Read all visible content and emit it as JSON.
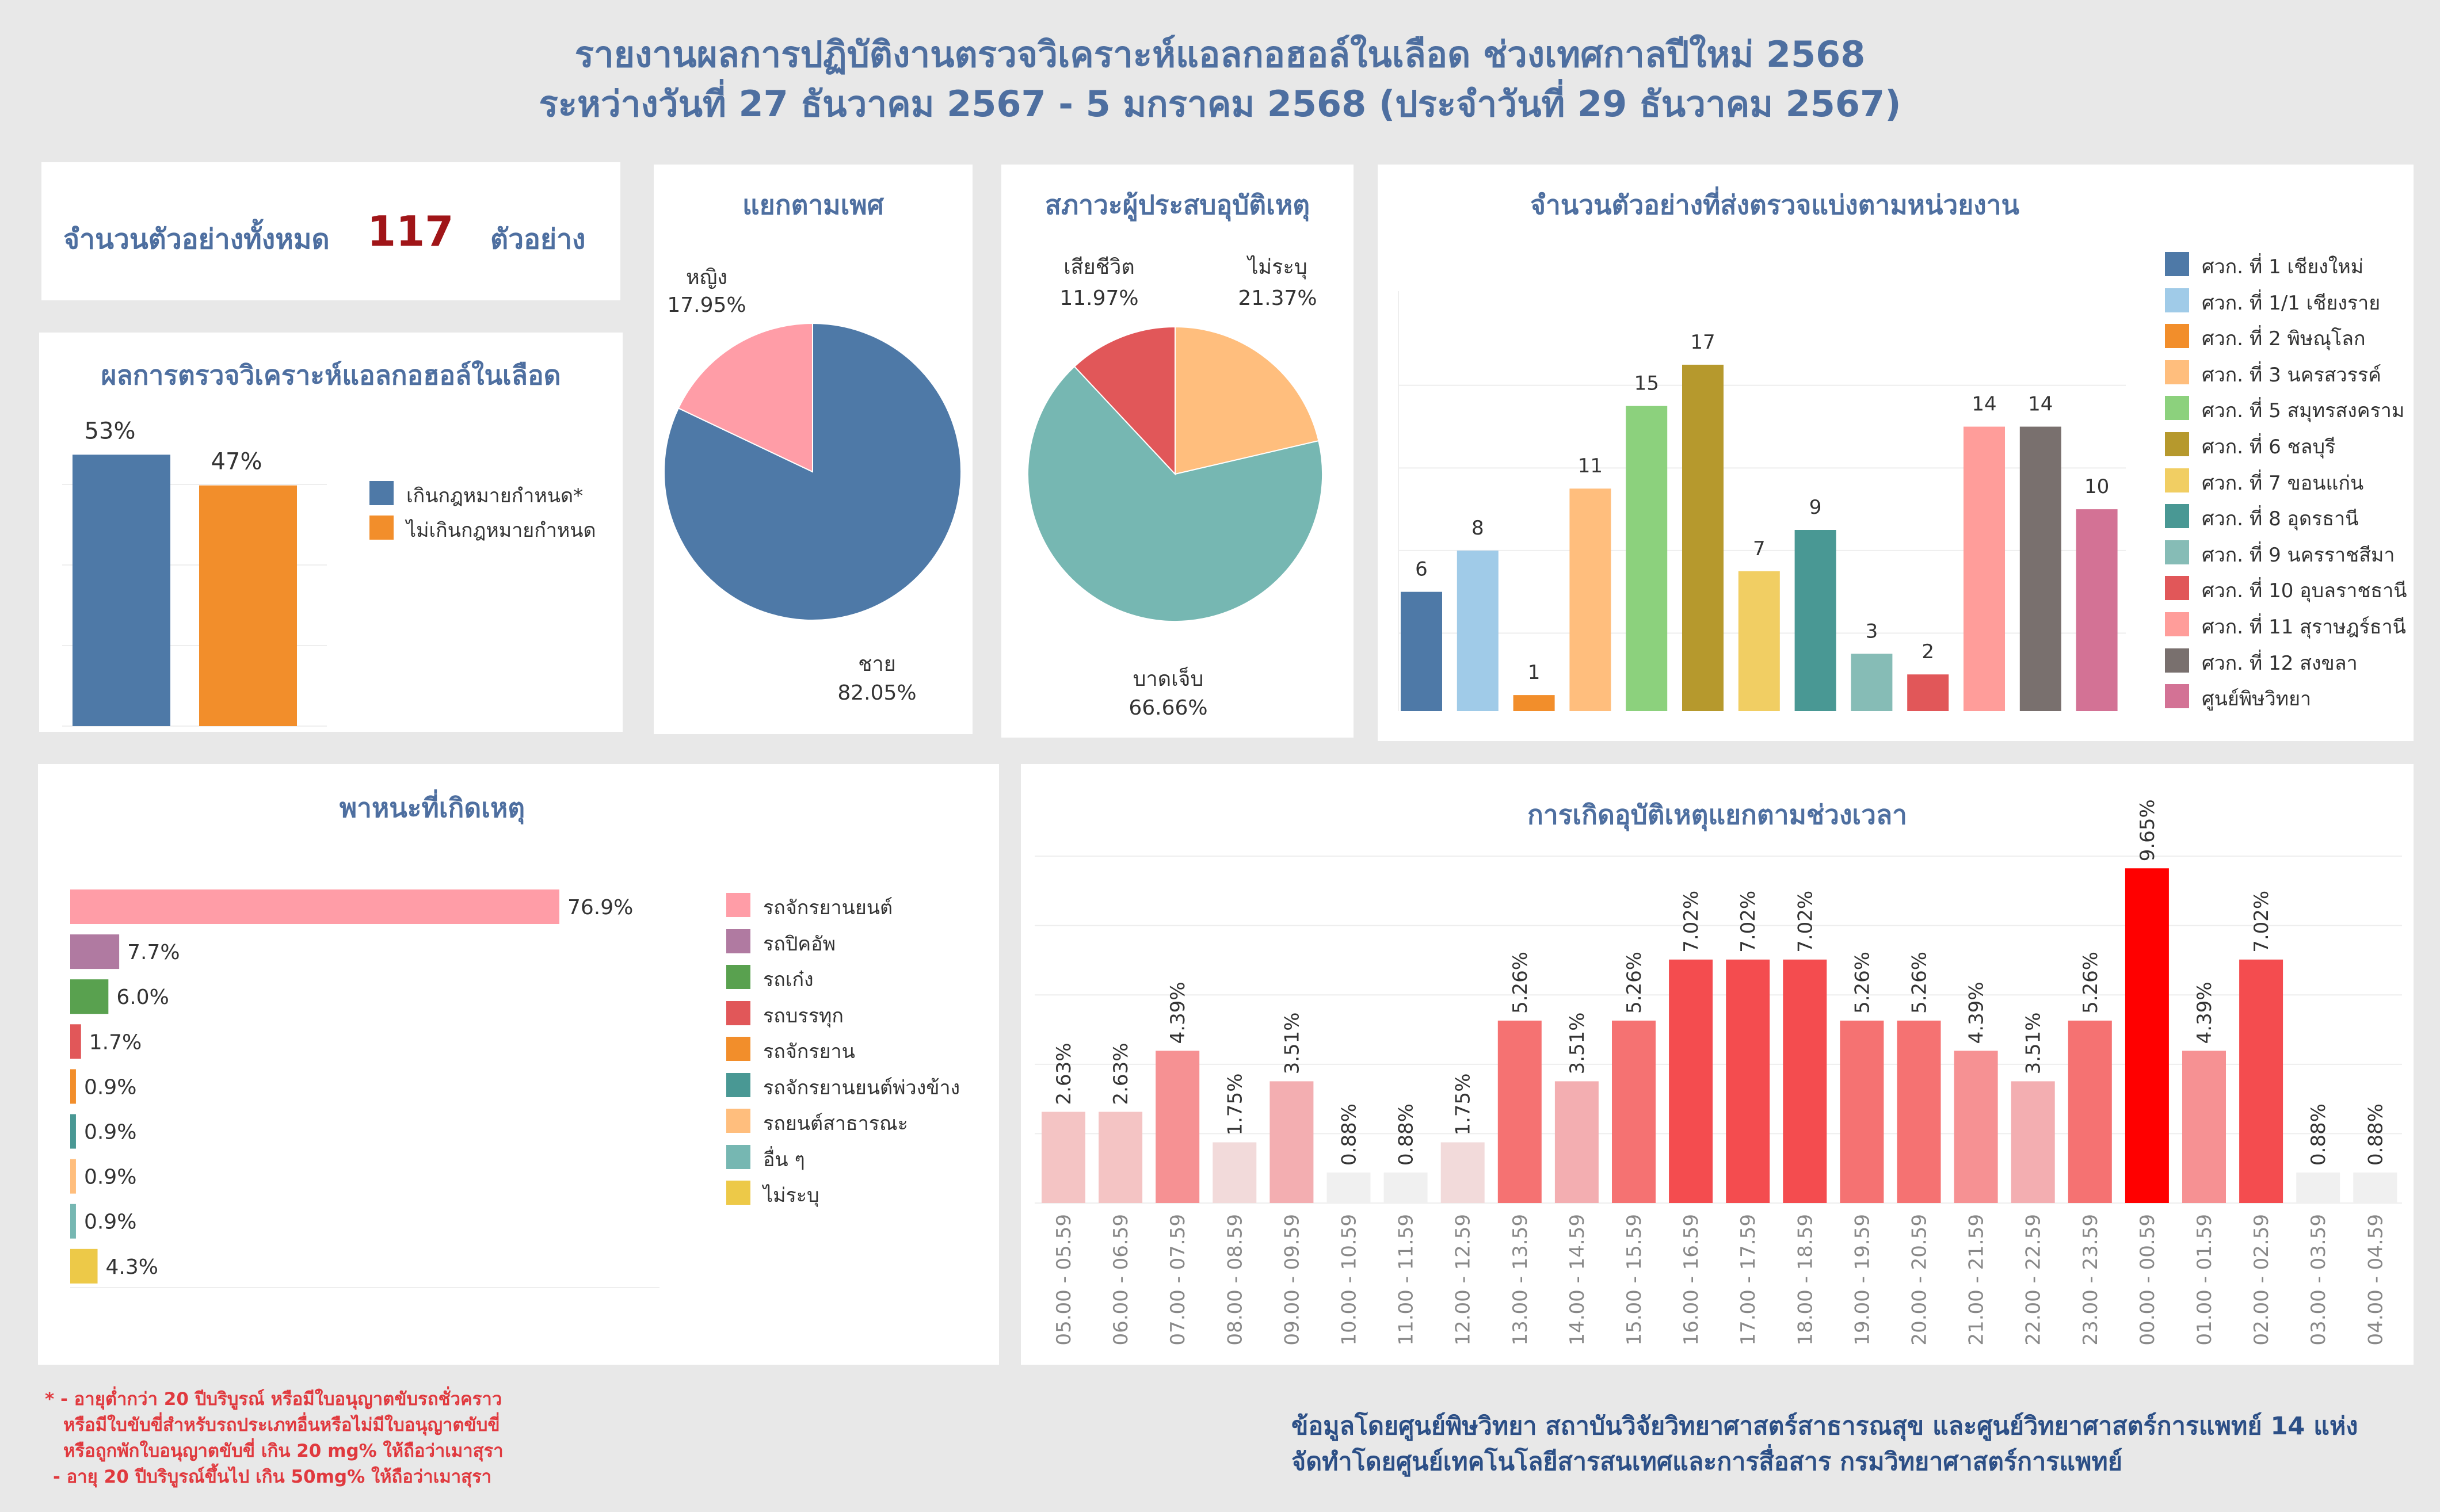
{
  "header": {
    "title_line1": "รายงานผลการปฏิบัติงานตรวจวิเคราะห์แอลกอฮอล์ในเลือด ช่วงเทศกาลปีใหม่ 2568",
    "title_line2": "ระหว่างวันที่ 27 ธันวาคม 2567 - 5 มกราคม 2568 (ประจำวันที่ 29 ธันวาคม 2567)"
  },
  "total": {
    "label": "จำนวนตัวอย่างทั้งหมด",
    "value": "117",
    "unit": "ตัวอย่าง",
    "value_color": "#a01518"
  },
  "colors": {
    "title_blue": "#4e6fa0",
    "panel_bg": "#ffffff",
    "page_bg": "#e8e8e8"
  },
  "chart_data": [
    {
      "id": "alcohol_result",
      "type": "bar",
      "title": "ผลการตรวจวิเคราะห์แอลกอฮอล์ในเลือด",
      "categories": [
        "เกินกฎหมายกำหนด*",
        "ไม่เกินกฎหมายกำหนด"
      ],
      "values": [
        53,
        47
      ],
      "labels": [
        "53%",
        "47%"
      ],
      "colors": [
        "#4e79a7",
        "#f28e2b"
      ],
      "ylim": [
        0,
        60
      ],
      "legend": "right"
    },
    {
      "id": "gender",
      "type": "pie",
      "title": "แยกตามเพศ",
      "categories": [
        "ชาย",
        "หญิง"
      ],
      "values": [
        82.05,
        17.95
      ],
      "labels": [
        "82.05%",
        "17.95%"
      ],
      "colors": [
        "#4e79a7",
        "#ff9da7"
      ]
    },
    {
      "id": "victim_status",
      "type": "pie",
      "title": "สภาวะผู้ประสบอุบัติเหตุ",
      "categories": [
        "ไม่ระบุ",
        "บาดเจ็บ",
        "เสียชีวิต"
      ],
      "values": [
        21.37,
        66.66,
        11.97
      ],
      "labels": [
        "21.37%",
        "66.66%",
        "11.97%"
      ],
      "colors": [
        "#ffbe7d",
        "#76b7b2",
        "#e15759"
      ]
    },
    {
      "id": "by_unit",
      "type": "bar",
      "title": "จำนวนตัวอย่างที่ส่งตรวจแบ่งตามหน่วยงาน",
      "categories": [
        "ศวก. ที่ 1 เชียงใหม่",
        "ศวก. ที่ 1/1 เชียงราย",
        "ศวก. ที่ 2 พิษณุโลก",
        "ศวก. ที่ 3 นครสวรรค์",
        "ศวก. ที่ 5 สมุทรสงคราม",
        "ศวก. ที่ 6 ชลบุรี",
        "ศวก. ที่ 7 ขอนแก่น",
        "ศวก. ที่ 8 อุดรธานี",
        "ศวก. ที่ 9 นครราชสีมา",
        "ศวก. ที่ 10 อุบลราชธานี",
        "ศวก. ที่ 11 สุราษฎร์ธานี",
        "ศวก. ที่ 12 สงขลา",
        "ศูนย์พิษวิทยา"
      ],
      "values": [
        6,
        8,
        1,
        11,
        15,
        17,
        7,
        9,
        3,
        2,
        14,
        14,
        10
      ],
      "colors": [
        "#4e79a7",
        "#a0cbe8",
        "#f28e2b",
        "#ffbe7d",
        "#8cd17d",
        "#b6992d",
        "#f1ce63",
        "#499894",
        "#86bcb6",
        "#e15759",
        "#ff9d9a",
        "#79706e",
        "#d37295"
      ],
      "ylim": [
        0,
        18
      ],
      "legend": "right"
    },
    {
      "id": "vehicle",
      "type": "bar",
      "orientation": "horizontal",
      "title": "พาหนะที่เกิดเหตุ",
      "categories": [
        "รถจักรยานยนต์",
        "รถปิคอัพ",
        "รถเก๋ง",
        "รถบรรทุก",
        "รถจักรยาน",
        "รถจักรยานยนต์พ่วงข้าง",
        "รถยนต์สาธารณะ",
        "อื่น ๆ",
        "ไม่ระบุ"
      ],
      "values": [
        76.9,
        7.7,
        6.0,
        1.7,
        0.9,
        0.9,
        0.9,
        0.9,
        4.3
      ],
      "labels": [
        "76.9%",
        "7.7%",
        "6.0%",
        "1.7%",
        "0.9%",
        "0.9%",
        "0.9%",
        "0.9%",
        "4.3%"
      ],
      "colors": [
        "#ff9da7",
        "#b07aa1",
        "#59a14f",
        "#e15759",
        "#f28e2b",
        "#499894",
        "#ffbe7d",
        "#76b7b2",
        "#edc948"
      ],
      "legend": "right"
    },
    {
      "id": "time_of_day",
      "type": "bar",
      "title": "การเกิดอุบัติเหตุแยกตามช่วงเวลา",
      "categories": [
        "05.00 - 05.59",
        "06.00 - 06.59",
        "07.00 - 07.59",
        "08.00 - 08.59",
        "09.00 - 09.59",
        "10.00 - 10.59",
        "11.00 - 11.59",
        "12.00 - 12.59",
        "13.00 - 13.59",
        "14.00 - 14.59",
        "15.00 - 15.59",
        "16.00 - 16.59",
        "17.00 - 17.59",
        "18.00 - 18.59",
        "19.00 - 19.59",
        "20.00 - 20.59",
        "21.00 - 21.59",
        "22.00 - 22.59",
        "23.00 - 23.59",
        "00.00 - 00.59",
        "01.00 - 01.59",
        "02.00 - 02.59",
        "03.00 - 03.59",
        "04.00 - 04.59"
      ],
      "values": [
        2.63,
        2.63,
        4.39,
        1.75,
        3.51,
        0.88,
        0.88,
        1.75,
        5.26,
        3.51,
        5.26,
        7.02,
        7.02,
        7.02,
        5.26,
        5.26,
        4.39,
        3.51,
        5.26,
        9.65,
        4.39,
        7.02,
        0.88,
        0.88
      ],
      "labels": [
        "2.63%",
        "2.63%",
        "4.39%",
        "1.75%",
        "3.51%",
        "0.88%",
        "0.88%",
        "1.75%",
        "5.26%",
        "3.51%",
        "5.26%",
        "7.02%",
        "7.02%",
        "7.02%",
        "5.26%",
        "5.26%",
        "4.39%",
        "3.51%",
        "5.26%",
        "9.65%",
        "4.39%",
        "7.02%",
        "0.88%",
        "0.88%"
      ],
      "colors": [
        "#f4c4c4",
        "#f4c4c4",
        "#f69193",
        "#f2dada",
        "#f3aeb1",
        "#f0f0f0",
        "#f0f0f0",
        "#f2dada",
        "#f57272",
        "#f3aeb1",
        "#f57272",
        "#f44c4f",
        "#f44c4f",
        "#f44c4f",
        "#f57272",
        "#f57272",
        "#f69193",
        "#f3aeb1",
        "#f57272",
        "#ff0000",
        "#f69193",
        "#f44c4f",
        "#f0f0f0",
        "#f0f0f0"
      ],
      "ylim": [
        0,
        10.5
      ]
    }
  ],
  "footer": {
    "note_line1": "* - อายุต่ำกว่า 20 ปีบริบูรณ์ หรือมีใบอนุญาตขับรถชั่วคราว",
    "note_line2": "หรือมีใบขับขี่สำหรับรถประเภทอื่นหรือไม่มีใบอนุญาตขับขี่",
    "note_line3": "หรือถูกพักใบอนุญาตขับขี่ เกิน 20 mg% ให้ถือว่าเมาสุรา",
    "note_line4": "- อายุ 20 ปีบริบูรณ์ขึ้นไป เกิน 50mg% ให้ถือว่าเมาสุรา",
    "credit_line1": "ข้อมูลโดยศูนย์พิษวิทยา สถาบันวิจัยวิทยาศาสตร์สาธารณสุข และศูนย์วิทยาศาสตร์การแพทย์ 14 แห่ง",
    "credit_line2": "จัดทำโดยศูนย์เทคโนโลยีสารสนเทศและการสื่อสาร กรมวิทยาศาสตร์การแพทย์"
  }
}
